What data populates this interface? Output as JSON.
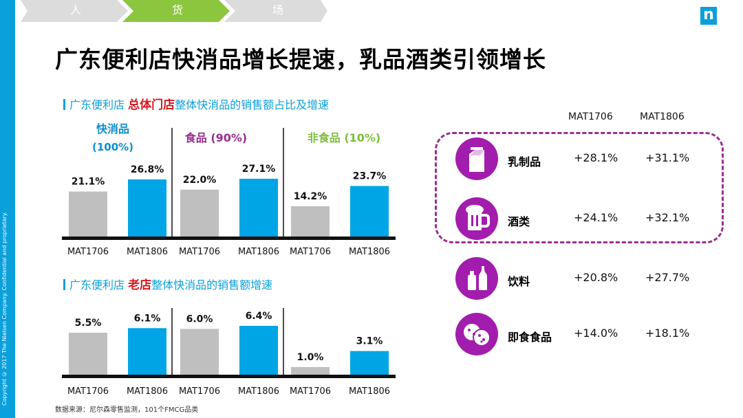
{
  "nav": {
    "tabs": [
      {
        "label": "人",
        "active": false
      },
      {
        "label": "货",
        "active": true
      },
      {
        "label": "场",
        "active": false
      }
    ]
  },
  "logo": "n",
  "title": "广东便利店快消品增长提速，乳品酒类引领增长",
  "copyright": "Copyright © 2017 The Nielsen Company. Confidential and proprietary.",
  "colors": {
    "gray": "#c0bfbf",
    "blue": "#00a5e6",
    "accent": "#0aa0dc",
    "red": "#d4171e",
    "purple": "#a21dad",
    "green": "#8cc63f"
  },
  "section1": {
    "prefix": "广东便利店",
    "highlight": "总体门店",
    "suffix": "整体快消品的销售额占比及增速"
  },
  "section2": {
    "prefix": "广东便利店",
    "highlight": "老店",
    "suffix": "整体快消品的销售额增速"
  },
  "chart_data": [
    {
      "type": "bar",
      "groups": [
        {
          "name": "快消品",
          "sub": "(100%)",
          "color": "#0b8fd1"
        },
        {
          "name": "食品 (90%)",
          "sub": "",
          "color": "#9b2d8f"
        },
        {
          "name": "非食品 (10%)",
          "sub": "",
          "color": "#7fbf3a"
        }
      ],
      "categories": [
        "MAT1706",
        "MAT1806",
        "MAT1706",
        "MAT1806",
        "MAT1706",
        "MAT1806"
      ],
      "values": [
        21.1,
        26.8,
        22.0,
        27.1,
        14.2,
        23.7
      ],
      "labels": [
        "21.1%",
        "26.8%",
        "22.0%",
        "27.1%",
        "14.2%",
        "23.7%"
      ]
    },
    {
      "type": "bar",
      "categories": [
        "MAT1706",
        "MAT1806",
        "MAT1706",
        "MAT1806",
        "MAT1706",
        "MAT1806"
      ],
      "values": [
        5.5,
        6.1,
        6.0,
        6.4,
        1.0,
        3.1
      ],
      "labels": [
        "5.5%",
        "6.1%",
        "6.0%",
        "6.4%",
        "1.0%",
        "3.1%"
      ]
    },
    {
      "type": "table",
      "columns": [
        "MAT1706",
        "MAT1806"
      ],
      "rows": [
        {
          "name": "乳制品",
          "icon": "milk-carton-icon",
          "v1": "+28.1%",
          "v2": "+31.1%"
        },
        {
          "name": "酒类",
          "icon": "beer-mug-icon",
          "v1": "+24.1%",
          "v2": "+32.1%"
        },
        {
          "name": "饮料",
          "icon": "bottles-icon",
          "v1": "+20.8%",
          "v2": "+27.7%"
        },
        {
          "name": "即食食品",
          "icon": "cookies-icon",
          "v1": "+14.0%",
          "v2": "+18.1%"
        }
      ]
    }
  ],
  "source": "数据来源：尼尔森零售监测，101个FMCG品类"
}
